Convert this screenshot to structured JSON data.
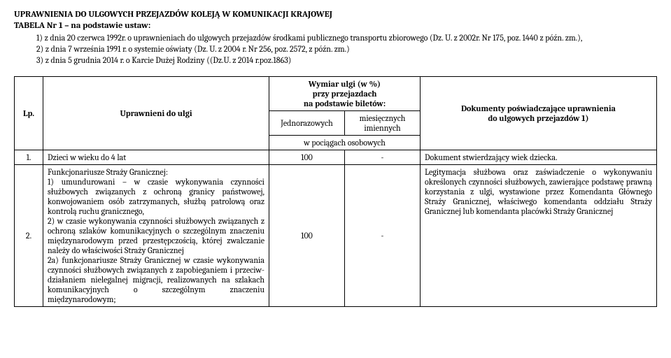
{
  "header": {
    "title": "UPRAWNIENIA DO ULGOWYCH PRZEJAZDÓW KOLEJĄ W KOMUNIKACJI KRAJOWEJ",
    "subtitle": "TABELA Nr 1 – na podstawie ustaw:",
    "laws": [
      "1)   z dnia 20 czerwca 1992r. o uprawnieniach do ulgowych przejazdów środkami publicznego transportu zbiorowego (Dz. U. z 2002r. Nr 175, poz. 1440 z późn. zm.),",
      "2)   z dnia 7 września 1991 r. o systemie oświaty (Dz. U. z 2004 r. Nr 256, poz. 2572, z późn. zm.)",
      "3)   z dnia 5 grudnia 2014 r. o Karcie Dużej Rodziny ((Dz.U. z 2014 r.poz.1863)"
    ]
  },
  "table": {
    "head": {
      "lp": "Lp.",
      "upr": "Uprawnieni do ulgi",
      "wymiar_l1": "Wymiar ulgi (w %)",
      "wymiar_l2": "przy przejazdach",
      "wymiar_l3": "na podstawie biletów:",
      "jedn": "Jednorazowych",
      "mies_l1": "miesięcznych",
      "mies_l2": "imiennych",
      "pociagi": "w  pociągach osobowych",
      "dok_l1": "Dokumenty poświadczające uprawnienia",
      "dok_l2": "do ulgowych przejazdów 1)"
    },
    "rows": [
      {
        "lp": "1.",
        "upr": "Dzieci w wieku do 4 lat",
        "jedn": "100",
        "mies": "-",
        "dok": "Dokument stwierdzający wiek dziecka."
      },
      {
        "lp": "2.",
        "upr": "Funkcjonariusze Straży Granicznej:\n1) umundurowani – w czasie wykonywania czynności służbowych związanych z ochroną granicy państwowej, konwojowaniem osób zatrzymanych, służbą patrolową oraz kontrolą ruchu granicznego,\n2) w czasie wykonywania czynności służbowych związanych z ochroną szlaków komunikacyjnych o szczególnym znaczeniu międzynarodowym przed przestępczością, której zwalczanie należy do właściwości Straży Granicznej\n2a) funkcjonariusze Straży Granicznej w czasie wykonywania czynności służbowych związanych z zapobieganiem i przeciw-działaniem nielegalnej migracji, realizowanych na szlakach komunikacyjnych o szczególnym znaczeniu międzynarodowym;",
        "jedn": "100",
        "mies": "-",
        "dok": "Legitymacja służbowa oraz zaświadczenie o wykonywaniu określonych czynności służbowych, zawierające podstawę prawną korzystania z ulgi, wystawione przez Komendanta Głównego Straży Granicznej, właściwego komendanta oddziału Straży Granicznej lub komendanta placówki Straży Granicznej"
      }
    ]
  }
}
